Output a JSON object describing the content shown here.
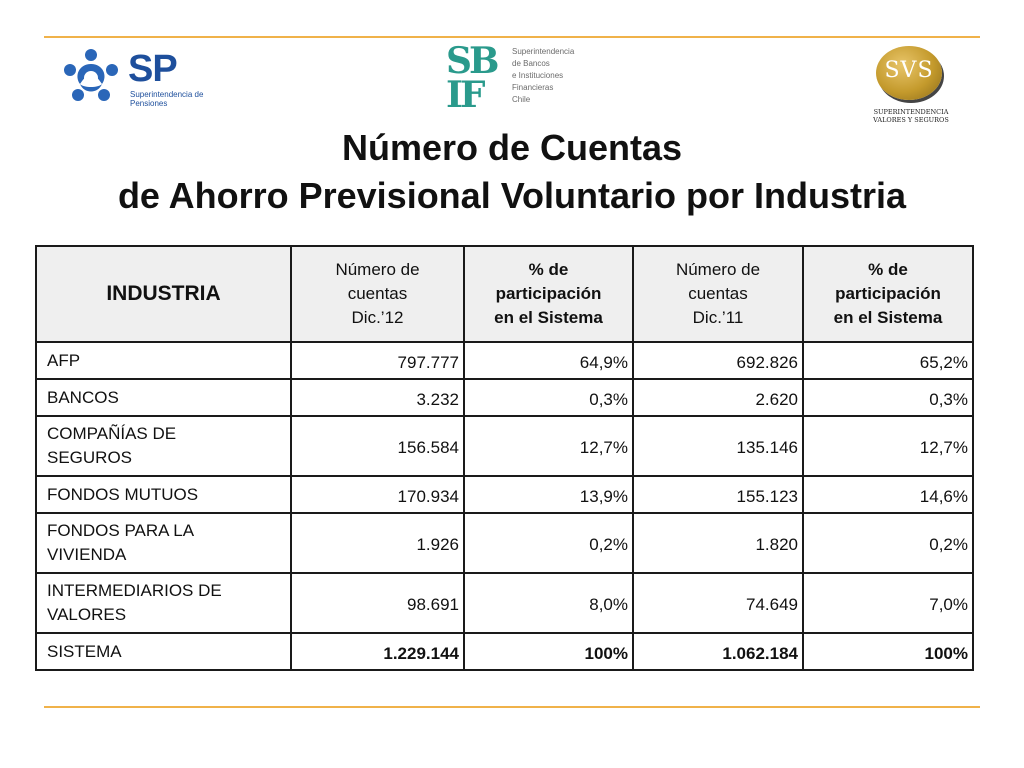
{
  "logos": {
    "sp": {
      "mark": "SP",
      "subtitle": "Superintendencia de Pensiones",
      "color": "#1e4f9c"
    },
    "sbif": {
      "mark_line1": "SB",
      "mark_line2": "IF",
      "text_lines": [
        "Superintendencia",
        "de Bancos",
        "e Instituciones",
        "Financieras",
        "Chile"
      ],
      "color": "#2a9a8c"
    },
    "svs": {
      "mark": "SVS",
      "subtitle_line1": "SUPERINTENDENCIA",
      "subtitle_line2": "VALORES Y SEGUROS",
      "color": "#c49a2c"
    }
  },
  "title": {
    "line1": "Número de Cuentas",
    "line2": "de Ahorro Previsional Voluntario por Industria"
  },
  "table": {
    "headers": {
      "industria": "INDUSTRIA",
      "col1": [
        "Número de",
        "cuentas",
        "Dic.’12"
      ],
      "col2": [
        "% de",
        "participación",
        "en el Sistema"
      ],
      "col3": [
        "Número de",
        "cuentas",
        "Dic.’11"
      ],
      "col4": [
        "% de",
        "participación",
        "en el Sistema"
      ]
    },
    "rows": [
      {
        "label": [
          "AFP"
        ],
        "c1": "797.777",
        "c2": "64,9%",
        "c3": "692.826",
        "c4": "65,2%"
      },
      {
        "label": [
          "BANCOS"
        ],
        "c1": "3.232",
        "c2": "0,3%",
        "c3": "2.620",
        "c4": "0,3%"
      },
      {
        "label": [
          "COMPAÑÍAS DE",
          "SEGUROS"
        ],
        "c1": "156.584",
        "c2": "12,7%",
        "c3": "135.146",
        "c4": "12,7%"
      },
      {
        "label": [
          "FONDOS MUTUOS"
        ],
        "c1": "170.934",
        "c2": "13,9%",
        "c3": "155.123",
        "c4": "14,6%"
      },
      {
        "label": [
          "FONDOS PARA LA",
          "VIVIENDA"
        ],
        "c1": "1.926",
        "c2": "0,2%",
        "c3": "1.820",
        "c4": "0,2%"
      },
      {
        "label": [
          "INTERMEDIARIOS DE",
          "VALORES"
        ],
        "c1": "98.691",
        "c2": "8,0%",
        "c3": "74.649",
        "c4": "7,0%"
      },
      {
        "label": [
          "SISTEMA"
        ],
        "c1": "1.229.144",
        "c2": "100%",
        "c3": "1.062.184",
        "c4": "100%"
      }
    ]
  },
  "colors": {
    "rule": "#f0b24a",
    "header_bg": "#efefef",
    "border": "#1a1a1a"
  }
}
